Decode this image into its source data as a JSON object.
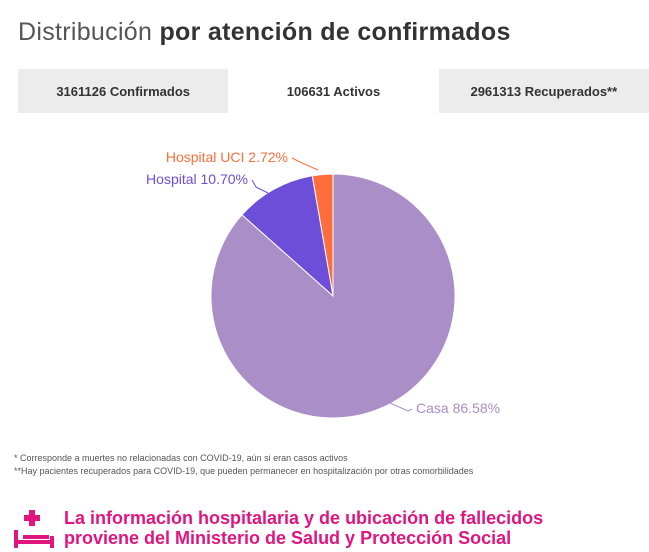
{
  "title": {
    "regular": "Distribución ",
    "bold": "por atención de confirmados"
  },
  "tabs": [
    {
      "label": "3161126 Confirmados",
      "active": false
    },
    {
      "label": "106631 Activos",
      "active": true
    },
    {
      "label": "2961313 Recuperados**",
      "active": false
    }
  ],
  "chart_data": {
    "type": "pie",
    "slices": [
      {
        "label": "Hospital UCI",
        "value": 2.72,
        "display": "Hospital UCI 2.72%",
        "color": "#fe6e3b"
      },
      {
        "label": "Hospital",
        "value": 10.7,
        "display": "Hospital 10.70%",
        "color": "#6d4ed8"
      },
      {
        "label": "Casa",
        "value": 86.58,
        "display": "Casa 86.58%",
        "color": "#a98ec8"
      }
    ]
  },
  "notes": {
    "line1": "* Corresponde a muertes no relacionadas con COVID-19, aún si eran casos activos",
    "line2": "**Hay pacientes recuperados para COVID-19, que pueden permanecer en hospitalización por otras comorbilidades"
  },
  "footer": {
    "line1": "La información hospitalaria y de ubicación de fallecidos",
    "line2": "proviene del Ministerio de Salud y Protección Social",
    "icon": "hospital-bed-icon",
    "color": "#e0157f"
  }
}
